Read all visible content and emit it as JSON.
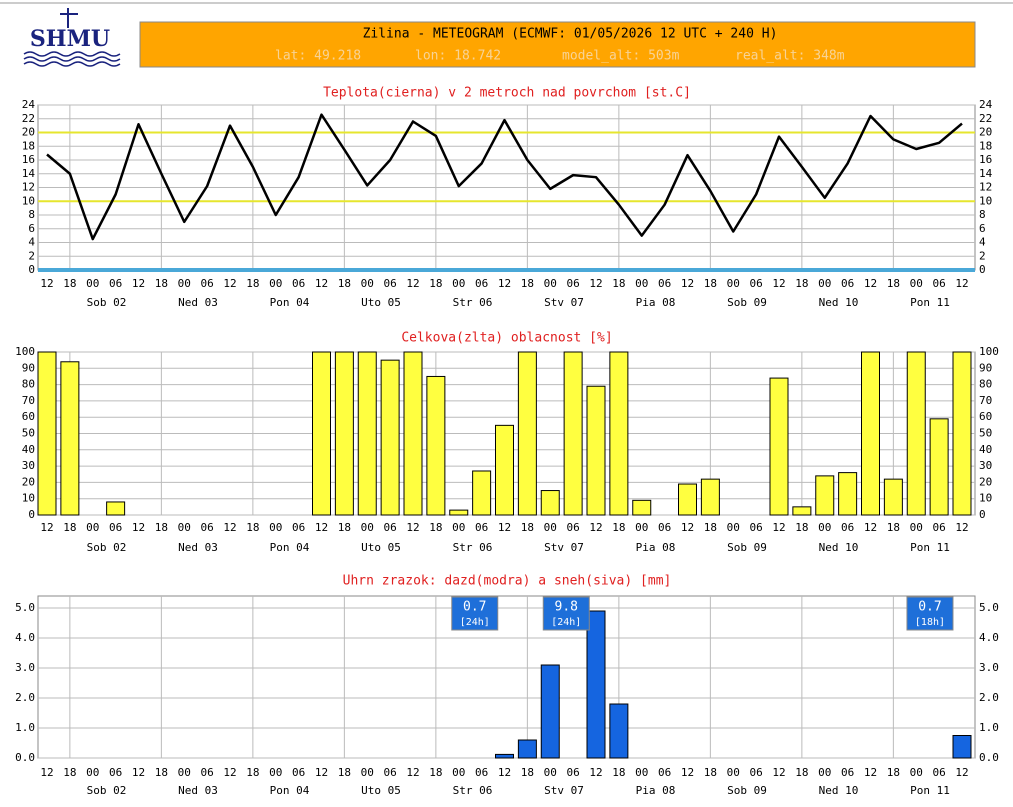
{
  "header": {
    "logo": "SHMU",
    "title": "Zilina - METEOGRAM (ECMWF: 01/05/2026 12 UTC + 240 H)",
    "subtitle": [
      "lat: 49.218",
      "lon: 18.742",
      "model_alt: 503m",
      "real_alt: 348m"
    ]
  },
  "chart_data": [
    {
      "type": "line",
      "title": "Teplota(cierna) v 2 metroch nad povrchom [st.C]",
      "categories": [
        "12",
        "18",
        "00",
        "06",
        "12",
        "18",
        "00",
        "06",
        "12",
        "18",
        "00",
        "06",
        "12",
        "18",
        "00",
        "06",
        "12",
        "18",
        "00",
        "06",
        "12",
        "18",
        "00",
        "06",
        "12",
        "18",
        "00",
        "06",
        "12",
        "18",
        "00",
        "06",
        "12",
        "18",
        "00",
        "06",
        "12",
        "18",
        "00",
        "06",
        "12"
      ],
      "days": [
        "Sob 02",
        "Ned 03",
        "Pon 04",
        "Uto 05",
        "Str 06",
        "Stv 07",
        "Pia 08",
        "Sob 09",
        "Ned 10",
        "Pon 11"
      ],
      "values": [
        16.8,
        14,
        4.5,
        11,
        21.2,
        14,
        7,
        12.2,
        21,
        15,
        8,
        13.5,
        22.6,
        17.5,
        12.3,
        16,
        21.6,
        19.5,
        12.2,
        15.5,
        21.8,
        16,
        11.8,
        13.8,
        13.5,
        9.5,
        5,
        9.5,
        16.7,
        11.5,
        5.6,
        11,
        19.4,
        15,
        10.5,
        15.5,
        22.4,
        19,
        17.6,
        18.5,
        21.3
      ],
      "color": "#000000",
      "ylim": [
        0,
        24
      ],
      "yticks": [
        0,
        2,
        4,
        6,
        8,
        10,
        12,
        14,
        16,
        18,
        20,
        22,
        24
      ],
      "reference_lines": [
        10,
        20
      ],
      "reference_color": "#e6e62e",
      "zero_line_color": "#4aa8d8",
      "grid": true
    },
    {
      "type": "bar",
      "title": "Celkova(zlta) oblacnost [%]",
      "categories": [
        "12",
        "18",
        "00",
        "06",
        "12",
        "18",
        "00",
        "06",
        "12",
        "18",
        "00",
        "06",
        "12",
        "18",
        "00",
        "06",
        "12",
        "18",
        "00",
        "06",
        "12",
        "18",
        "00",
        "06",
        "12",
        "18",
        "00",
        "06",
        "12",
        "18",
        "00",
        "06",
        "12",
        "18",
        "00",
        "06",
        "12",
        "18",
        "00",
        "06",
        "12"
      ],
      "days": [
        "Sob 02",
        "Ned 03",
        "Pon 04",
        "Uto 05",
        "Str 06",
        "Stv 07",
        "Pia 08",
        "Sob 09",
        "Ned 10",
        "Pon 11"
      ],
      "values": [
        100,
        94,
        0,
        8,
        0,
        0,
        0,
        0,
        0,
        0,
        0,
        0,
        100,
        100,
        100,
        95,
        100,
        85,
        3,
        27,
        55,
        100,
        15,
        100,
        79,
        100,
        9,
        0,
        19,
        22,
        0,
        0,
        84,
        5,
        24,
        26,
        100,
        22,
        100,
        59,
        100
      ],
      "color": "#ffff40",
      "ylim": [
        0,
        100
      ],
      "yticks": [
        0,
        10,
        20,
        30,
        40,
        50,
        60,
        70,
        80,
        90,
        100
      ],
      "grid": true
    },
    {
      "type": "bar",
      "title": "Uhrn zrazok: dazd(modra) a sneh(siva) [mm]",
      "categories": [
        "12",
        "18",
        "00",
        "06",
        "12",
        "18",
        "00",
        "06",
        "12",
        "18",
        "00",
        "06",
        "12",
        "18",
        "00",
        "06",
        "12",
        "18",
        "00",
        "06",
        "12",
        "18",
        "00",
        "06",
        "12",
        "18",
        "00",
        "06",
        "12",
        "18",
        "00",
        "06",
        "12",
        "18",
        "00",
        "06",
        "12",
        "18",
        "00",
        "06",
        "12"
      ],
      "days": [
        "Sob 02",
        "Ned 03",
        "Pon 04",
        "Uto 05",
        "Str 06",
        "Stv 07",
        "Pia 08",
        "Sob 09",
        "Ned 10",
        "Pon 11"
      ],
      "values": [
        0,
        0,
        0,
        0,
        0,
        0,
        0,
        0,
        0,
        0,
        0,
        0,
        0,
        0,
        0,
        0,
        0,
        0,
        0,
        0,
        0.12,
        0.6,
        3.1,
        0,
        4.9,
        1.8,
        0,
        0,
        0,
        0,
        0,
        0,
        0,
        0,
        0,
        0,
        0,
        0,
        0,
        0,
        0.75
      ],
      "color": "#1565e0",
      "ylim": [
        0,
        5.4
      ],
      "yticks": [
        {
          "value": 0,
          "label": "0.0"
        },
        {
          "value": 1,
          "label": "1.0"
        },
        {
          "value": 2,
          "label": "2.0"
        },
        {
          "value": 3,
          "label": "3.0"
        },
        {
          "value": 4,
          "label": "4.0"
        },
        {
          "value": 5,
          "label": "5.0"
        }
      ],
      "annotations": [
        {
          "value": 0.7,
          "period": "[24h]"
        },
        {
          "value": 9.8,
          "period": "[24h]"
        },
        {
          "value": 0.7,
          "period": "[18h]"
        }
      ],
      "annotation_color": "#1e6fd9",
      "grid": true
    }
  ]
}
